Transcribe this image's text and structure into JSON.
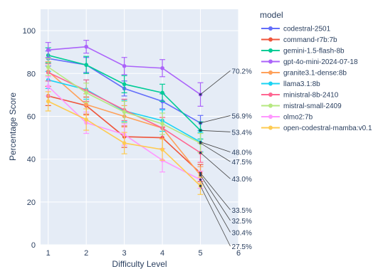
{
  "chart_data": {
    "type": "line",
    "xlabel": "Difficulty Level",
    "ylabel": "Percentage Score",
    "x": [
      1,
      2,
      3,
      4,
      5
    ],
    "xlim": [
      0.8,
      6
    ],
    "ylim": [
      0,
      110
    ],
    "x_ticks": [
      "1",
      "2",
      "3",
      "4",
      "5",
      "6"
    ],
    "y_ticks": [
      "0",
      "20",
      "40",
      "60",
      "80",
      "100"
    ],
    "grid": true,
    "legend_title": "model",
    "legend_position": "right",
    "plot_bg": "#e5ecf6",
    "series": [
      {
        "name": "codestral-2501",
        "color": "#636efa",
        "values": [
          87,
          84,
          73,
          67,
          56.9
        ],
        "err": [
          3.5,
          3.5,
          3.5,
          3.5,
          3.5
        ]
      },
      {
        "name": "command-r7b:7b",
        "color": "#ef553b",
        "values": [
          69.5,
          65,
          50.5,
          50,
          33.5
        ],
        "err": [
          4.5,
          4,
          5,
          5,
          4
        ]
      },
      {
        "name": "gemini-1.5-flash-8b",
        "color": "#00cc96",
        "values": [
          88.5,
          84,
          75,
          71,
          53.4
        ],
        "err": [
          3.5,
          4,
          4,
          4,
          4
        ]
      },
      {
        "name": "gpt-4o-mini-2024-07-18",
        "color": "#ab63fa",
        "values": [
          91,
          92.5,
          83.5,
          82.5,
          70.2
        ],
        "err": [
          3.5,
          3,
          4,
          4,
          5.5
        ]
      },
      {
        "name": "granite3.1-dense:8b",
        "color": "#ffa15a",
        "values": [
          81,
          65.5,
          60,
          54.5,
          32.5
        ],
        "err": [
          4.5,
          5,
          5,
          5,
          4
        ]
      },
      {
        "name": "llama3.1:8b",
        "color": "#19d3f3",
        "values": [
          77,
          72.5,
          62.5,
          58,
          48
        ],
        "err": [
          4,
          4.5,
          5,
          5,
          4.5
        ]
      },
      {
        "name": "ministral-8b-2410",
        "color": "#ff6692",
        "values": [
          80.5,
          72,
          63,
          54.5,
          43
        ],
        "err": [
          4,
          5,
          5,
          5,
          4.5
        ]
      },
      {
        "name": "mistral-small-2409",
        "color": "#b6e880",
        "values": [
          83,
          71,
          62,
          56.5,
          47.5
        ],
        "err": [
          4,
          4.5,
          5,
          5,
          4.5
        ]
      },
      {
        "name": "olmo2:7b",
        "color": "#ff97ff",
        "values": [
          74,
          57,
          51.5,
          39.5,
          30.4
        ],
        "err": [
          4.5,
          5,
          5,
          5.5,
          4
        ]
      },
      {
        "name": "open-codestral-mamba:v0.1",
        "color": "#fecb52",
        "values": [
          67,
          58.5,
          47.5,
          44.5,
          27.5
        ],
        "err": [
          4.5,
          5,
          5,
          5,
          4
        ]
      }
    ],
    "annotations": [
      {
        "text": "70.2%",
        "x": 5,
        "y": 70.2,
        "label_y": 82
      },
      {
        "text": "56.9%",
        "x": 5,
        "y": 56.9,
        "label_y": 61
      },
      {
        "text": "53.4%",
        "x": 5,
        "y": 53.4,
        "label_y": 53.4
      },
      {
        "text": "48.0%",
        "x": 5,
        "y": 48,
        "label_y": 44
      },
      {
        "text": "47.5%",
        "x": 5,
        "y": 47.5,
        "label_y": 39.5
      },
      {
        "text": "43.0%",
        "x": 5,
        "y": 43,
        "label_y": 31.5
      },
      {
        "text": "33.5%",
        "x": 5,
        "y": 33.5,
        "label_y": 17
      },
      {
        "text": "32.5%",
        "x": 5,
        "y": 32.5,
        "label_y": 12
      },
      {
        "text": "30.4%",
        "x": 5,
        "y": 30.4,
        "label_y": 6.5
      },
      {
        "text": "27.5%",
        "x": 5,
        "y": 27.5,
        "label_y": 0
      }
    ]
  }
}
